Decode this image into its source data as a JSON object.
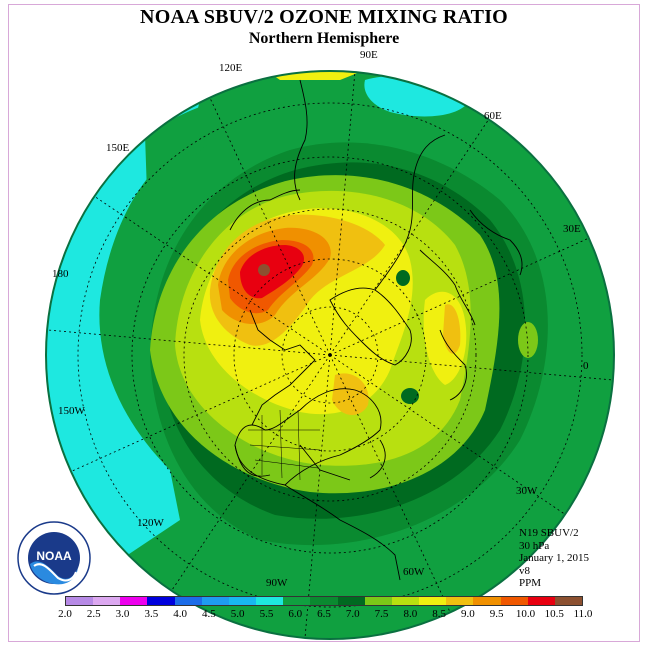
{
  "header": {
    "title": "NOAA SBUV/2 OZONE MIXING RATIO",
    "subtitle": "Northern Hemisphere"
  },
  "map": {
    "projection": "polar stereographic (north)",
    "longitude_labels": [
      "90E",
      "60E",
      "30E",
      "0",
      "30W",
      "60W",
      "90W",
      "120W",
      "150W",
      "180",
      "150E",
      "120E"
    ]
  },
  "info": {
    "satellite": "N19 SBUV/2",
    "level": "30 hPa",
    "date": "January 1, 2015",
    "version": "v8",
    "units": "PPM"
  },
  "logo": {
    "text": "NOAA",
    "icon": "noaa-logo-icon"
  },
  "colorbar": {
    "ticks": [
      "2.0",
      "2.5",
      "3.0",
      "3.5",
      "4.0",
      "4.5",
      "5.0",
      "5.5",
      "6.0",
      "6.5",
      "7.0",
      "7.5",
      "8.0",
      "8.5",
      "9.0",
      "9.5",
      "10.0",
      "10.5",
      "11.0"
    ],
    "colors": [
      "#b78ae6",
      "#dca8f0",
      "#ee00ee",
      "#0000dd",
      "#1c6ce8",
      "#1e9cf0",
      "#18b8f0",
      "#1ee8e0",
      "#10a040",
      "#0a8a30",
      "#006a20",
      "#7cc818",
      "#b8e010",
      "#f0f010",
      "#f0c010",
      "#f09000",
      "#f05800",
      "#e80010",
      "#8c5030"
    ]
  }
}
